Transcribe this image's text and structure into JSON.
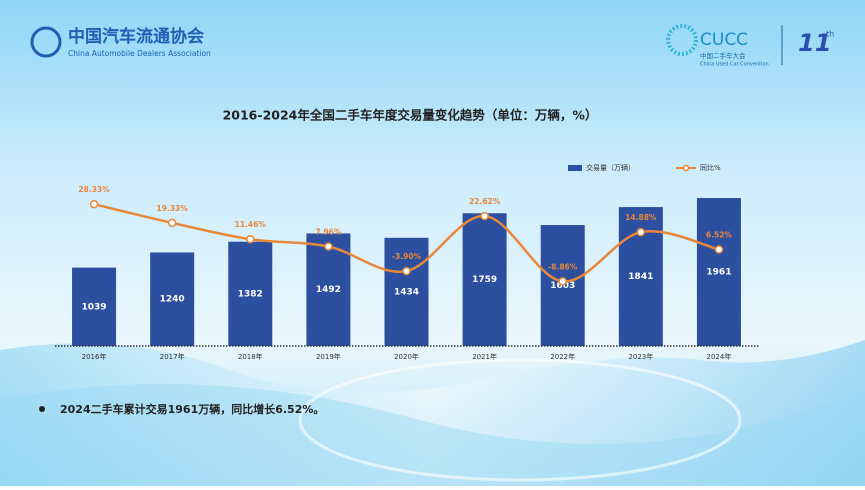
{
  "header": {
    "logo_cn": "中国汽车流通协会",
    "logo_en": "China Automobile Dealers Association",
    "cucc": "CUCC",
    "cucc_cn": "中国二手车大会",
    "cucc_en": "China Used Car Convention",
    "badge": "11",
    "badge_sup": "th"
  },
  "chart_data": {
    "type": "bar-line",
    "title": "2016-2024年全国二手车年度交易量变化趋势（单位：万辆，%）",
    "categories": [
      "2016年",
      "2017年",
      "2018年",
      "2019年",
      "2020年",
      "2021年",
      "2022年",
      "2023年",
      "2024年"
    ],
    "series": [
      {
        "name": "交易量（万辆）",
        "color": "#2d4f9f",
        "values": [
          1039,
          1240,
          1382,
          1492,
          1434,
          1759,
          1603,
          1841,
          1961
        ]
      },
      {
        "name": "同比%",
        "color": "#e8873a",
        "axis": "y2",
        "values": [
          28.33,
          19.33,
          11.46,
          7.96,
          -3.9,
          22.62,
          -8.86,
          14.88,
          6.52
        ],
        "value_labels": [
          "28.33%",
          "19.33%",
          "11.46%",
          "7.96%",
          "-3.90%",
          "22.62%",
          "-8.86%",
          "14.88%",
          "6.52%"
        ]
      }
    ],
    "ylim": [
      0,
      2200
    ],
    "y2lim": [
      -40,
      40
    ],
    "legend": "top-right"
  },
  "note": "2024二手车累计交易1961万辆，同比增长6.52%。"
}
